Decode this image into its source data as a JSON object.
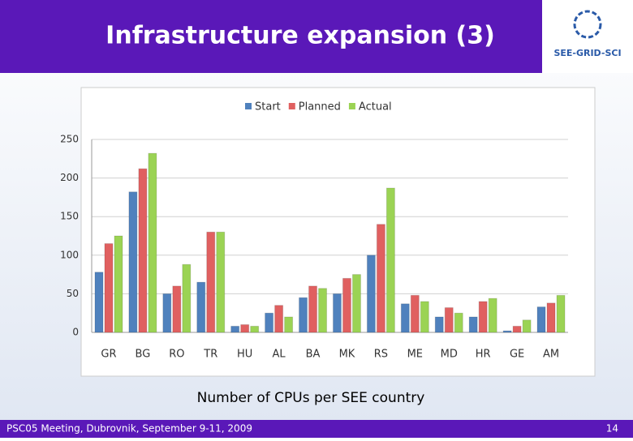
{
  "header": {
    "title": "Infrastructure expansion (3)",
    "logo": "SEE-GRID-SCI"
  },
  "caption": "Number of CPUs per SEE country",
  "footer": {
    "left": "PSC05 Meeting, Dubrovnik, September 9-11, 2009",
    "page": "14"
  },
  "chart_data": {
    "type": "bar",
    "categories": [
      "GR",
      "BG",
      "RO",
      "TR",
      "HU",
      "AL",
      "BA",
      "MK",
      "RS",
      "ME",
      "MD",
      "HR",
      "GE",
      "AM"
    ],
    "series": [
      {
        "name": "Start",
        "color": "#4f81bd",
        "values": [
          78,
          182,
          50,
          65,
          8,
          25,
          45,
          50,
          100,
          37,
          20,
          20,
          2,
          33
        ]
      },
      {
        "name": "Planned",
        "color": "#e06060",
        "values": [
          115,
          212,
          60,
          130,
          10,
          35,
          60,
          70,
          140,
          48,
          32,
          40,
          8,
          38
        ]
      },
      {
        "name": "Actual",
        "color": "#9bd354",
        "values": [
          125,
          232,
          88,
          130,
          8,
          20,
          57,
          75,
          187,
          40,
          25,
          44,
          16,
          48
        ]
      }
    ],
    "ylim": [
      0,
      250
    ],
    "yticks": [
      0,
      50,
      100,
      150,
      200,
      250
    ],
    "grid": true,
    "legend": "top"
  }
}
